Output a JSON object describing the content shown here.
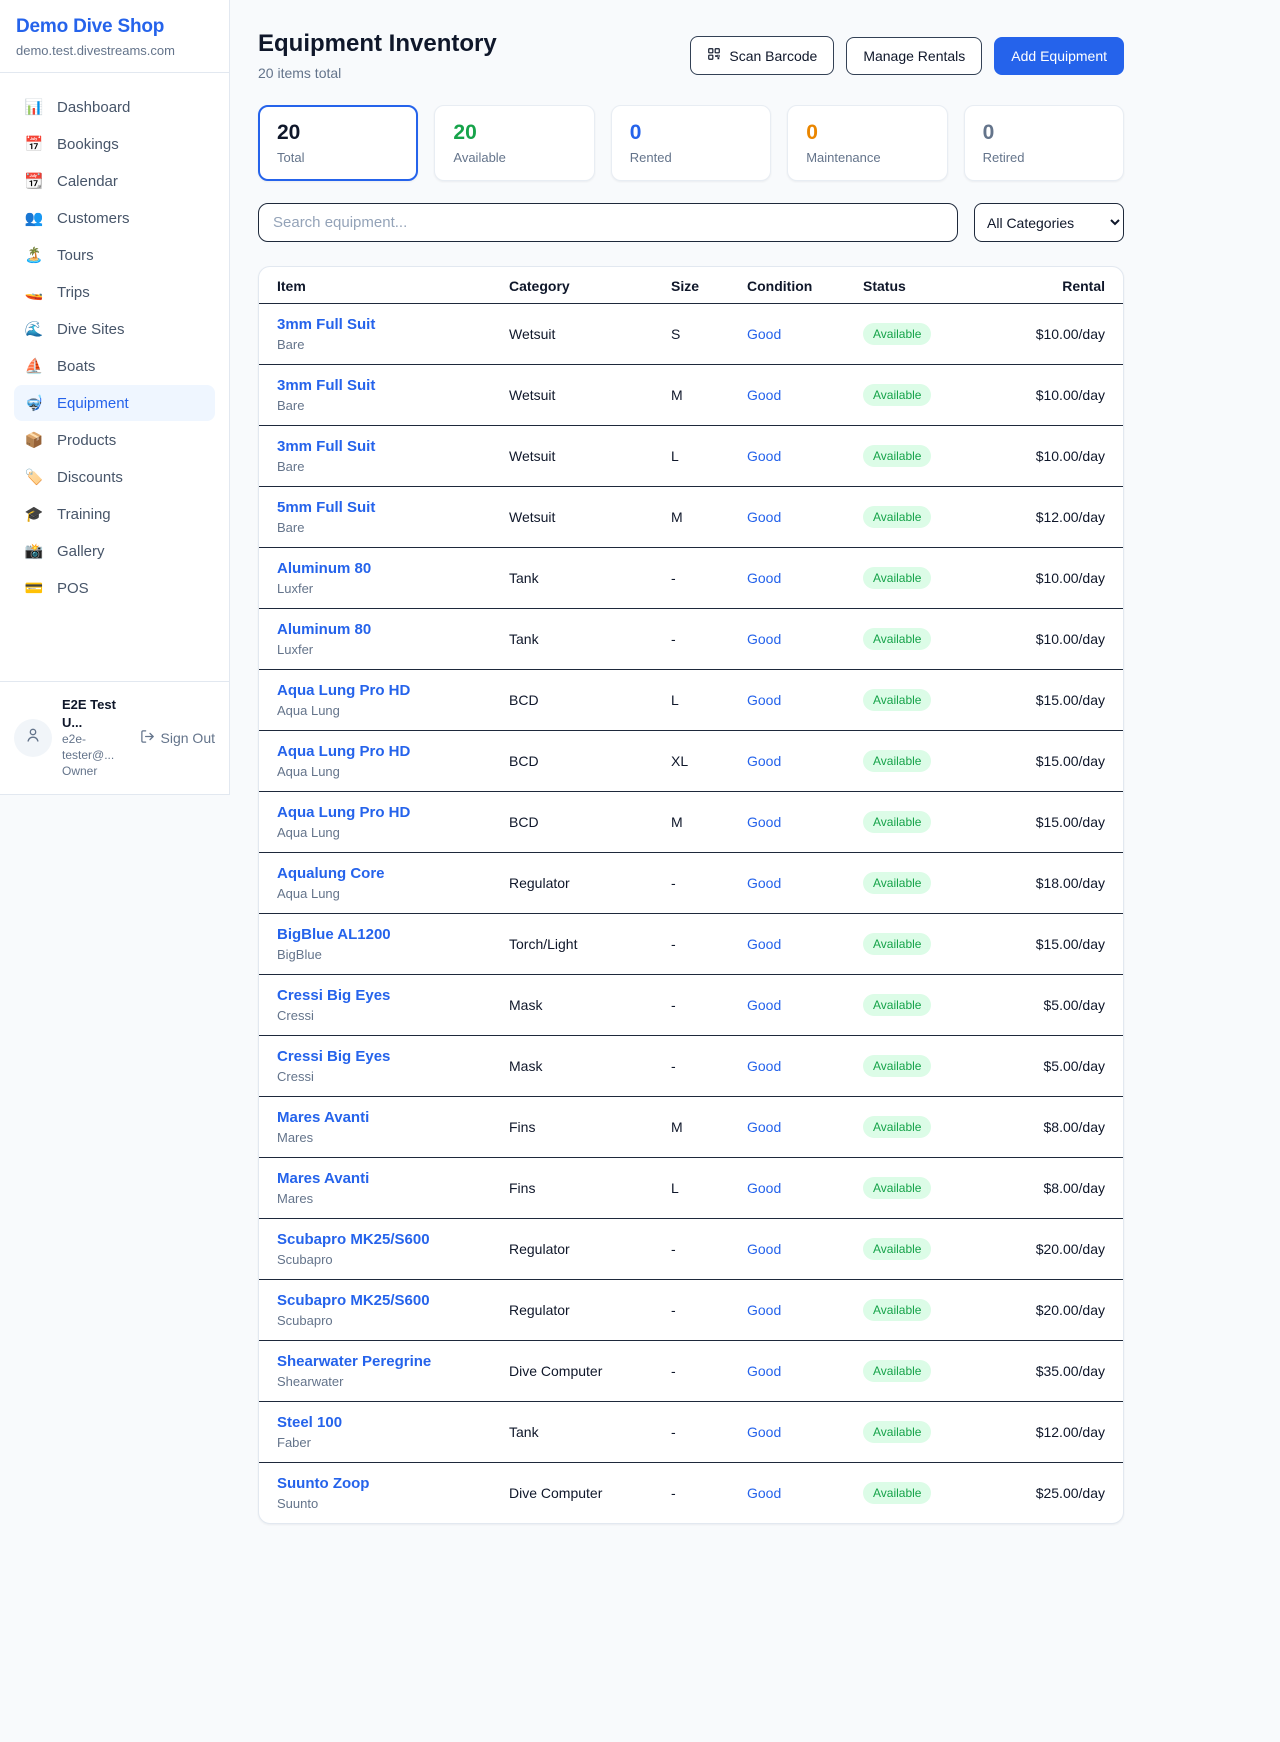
{
  "sidebar": {
    "brand": "Demo Dive Shop",
    "domain": "demo.test.divestreams.com",
    "items": [
      {
        "slug": "dashboard",
        "label": "Dashboard",
        "icon": "📊",
        "icon_name": "bar-chart-icon",
        "active": false
      },
      {
        "slug": "bookings",
        "label": "Bookings",
        "icon": "📅",
        "icon_name": "calendar-icon",
        "active": false
      },
      {
        "slug": "calendar",
        "label": "Calendar",
        "icon": "📆",
        "icon_name": "tear-off-calendar-icon",
        "active": false
      },
      {
        "slug": "customers",
        "label": "Customers",
        "icon": "👥",
        "icon_name": "people-icon",
        "active": false
      },
      {
        "slug": "tours",
        "label": "Tours",
        "icon": "🏝️",
        "icon_name": "island-icon",
        "active": false
      },
      {
        "slug": "trips",
        "label": "Trips",
        "icon": "🚤",
        "icon_name": "speedboat-icon",
        "active": false
      },
      {
        "slug": "dive-sites",
        "label": "Dive Sites",
        "icon": "🌊",
        "icon_name": "wave-icon",
        "active": false
      },
      {
        "slug": "boats",
        "label": "Boats",
        "icon": "⛵",
        "icon_name": "sailboat-icon",
        "active": false
      },
      {
        "slug": "equipment",
        "label": "Equipment",
        "icon": "🤿",
        "icon_name": "diving-mask-icon",
        "active": true
      },
      {
        "slug": "products",
        "label": "Products",
        "icon": "📦",
        "icon_name": "package-icon",
        "active": false
      },
      {
        "slug": "discounts",
        "label": "Discounts",
        "icon": "🏷️",
        "icon_name": "tag-icon",
        "active": false
      },
      {
        "slug": "training",
        "label": "Training",
        "icon": "🎓",
        "icon_name": "graduation-cap-icon",
        "active": false
      },
      {
        "slug": "gallery",
        "label": "Gallery",
        "icon": "📸",
        "icon_name": "camera-icon",
        "active": false
      },
      {
        "slug": "pos",
        "label": "POS",
        "icon": "💳",
        "icon_name": "credit-card-icon",
        "active": false
      }
    ],
    "user": {
      "name": "E2E Test U...",
      "email": "e2e-tester@...",
      "role": "Owner",
      "sign_out": "Sign Out"
    }
  },
  "header": {
    "title": "Equipment Inventory",
    "subtitle": "20 items total",
    "scan_barcode": "Scan Barcode",
    "manage_rentals": "Manage Rentals",
    "add_equipment": "Add Equipment"
  },
  "stats": [
    {
      "value": "20",
      "label": "Total",
      "color": "#0f172a",
      "active": true
    },
    {
      "value": "20",
      "label": "Available",
      "color": "#16a34a",
      "active": false
    },
    {
      "value": "0",
      "label": "Rented",
      "color": "#2563eb",
      "active": false
    },
    {
      "value": "0",
      "label": "Maintenance",
      "color": "#ea8600",
      "active": false
    },
    {
      "value": "0",
      "label": "Retired",
      "color": "#64748b",
      "active": false
    }
  ],
  "filters": {
    "search_placeholder": "Search equipment...",
    "category_selected": "All Categories"
  },
  "table": {
    "columns": [
      "Item",
      "Category",
      "Size",
      "Condition",
      "Status",
      "Rental"
    ],
    "rows": [
      {
        "item": "3mm Full Suit",
        "brand": "Bare",
        "category": "Wetsuit",
        "size": "S",
        "condition": "Good",
        "status": "Available",
        "rental": "$10.00/day"
      },
      {
        "item": "3mm Full Suit",
        "brand": "Bare",
        "category": "Wetsuit",
        "size": "M",
        "condition": "Good",
        "status": "Available",
        "rental": "$10.00/day"
      },
      {
        "item": "3mm Full Suit",
        "brand": "Bare",
        "category": "Wetsuit",
        "size": "L",
        "condition": "Good",
        "status": "Available",
        "rental": "$10.00/day"
      },
      {
        "item": "5mm Full Suit",
        "brand": "Bare",
        "category": "Wetsuit",
        "size": "M",
        "condition": "Good",
        "status": "Available",
        "rental": "$12.00/day"
      },
      {
        "item": "Aluminum 80",
        "brand": "Luxfer",
        "category": "Tank",
        "size": "-",
        "condition": "Good",
        "status": "Available",
        "rental": "$10.00/day"
      },
      {
        "item": "Aluminum 80",
        "brand": "Luxfer",
        "category": "Tank",
        "size": "-",
        "condition": "Good",
        "status": "Available",
        "rental": "$10.00/day"
      },
      {
        "item": "Aqua Lung Pro HD",
        "brand": "Aqua Lung",
        "category": "BCD",
        "size": "L",
        "condition": "Good",
        "status": "Available",
        "rental": "$15.00/day"
      },
      {
        "item": "Aqua Lung Pro HD",
        "brand": "Aqua Lung",
        "category": "BCD",
        "size": "XL",
        "condition": "Good",
        "status": "Available",
        "rental": "$15.00/day"
      },
      {
        "item": "Aqua Lung Pro HD",
        "brand": "Aqua Lung",
        "category": "BCD",
        "size": "M",
        "condition": "Good",
        "status": "Available",
        "rental": "$15.00/day"
      },
      {
        "item": "Aqualung Core",
        "brand": "Aqua Lung",
        "category": "Regulator",
        "size": "-",
        "condition": "Good",
        "status": "Available",
        "rental": "$18.00/day"
      },
      {
        "item": "BigBlue AL1200",
        "brand": "BigBlue",
        "category": "Torch/Light",
        "size": "-",
        "condition": "Good",
        "status": "Available",
        "rental": "$15.00/day"
      },
      {
        "item": "Cressi Big Eyes",
        "brand": "Cressi",
        "category": "Mask",
        "size": "-",
        "condition": "Good",
        "status": "Available",
        "rental": "$5.00/day"
      },
      {
        "item": "Cressi Big Eyes",
        "brand": "Cressi",
        "category": "Mask",
        "size": "-",
        "condition": "Good",
        "status": "Available",
        "rental": "$5.00/day"
      },
      {
        "item": "Mares Avanti",
        "brand": "Mares",
        "category": "Fins",
        "size": "M",
        "condition": "Good",
        "status": "Available",
        "rental": "$8.00/day"
      },
      {
        "item": "Mares Avanti",
        "brand": "Mares",
        "category": "Fins",
        "size": "L",
        "condition": "Good",
        "status": "Available",
        "rental": "$8.00/day"
      },
      {
        "item": "Scubapro MK25/S600",
        "brand": "Scubapro",
        "category": "Regulator",
        "size": "-",
        "condition": "Good",
        "status": "Available",
        "rental": "$20.00/day"
      },
      {
        "item": "Scubapro MK25/S600",
        "brand": "Scubapro",
        "category": "Regulator",
        "size": "-",
        "condition": "Good",
        "status": "Available",
        "rental": "$20.00/day"
      },
      {
        "item": "Shearwater Peregrine",
        "brand": "Shearwater",
        "category": "Dive Computer",
        "size": "-",
        "condition": "Good",
        "status": "Available",
        "rental": "$35.00/day"
      },
      {
        "item": "Steel 100",
        "brand": "Faber",
        "category": "Tank",
        "size": "-",
        "condition": "Good",
        "status": "Available",
        "rental": "$12.00/day"
      },
      {
        "item": "Suunto Zoop",
        "brand": "Suunto",
        "category": "Dive Computer",
        "size": "-",
        "condition": "Good",
        "status": "Available",
        "rental": "$25.00/day"
      }
    ]
  }
}
